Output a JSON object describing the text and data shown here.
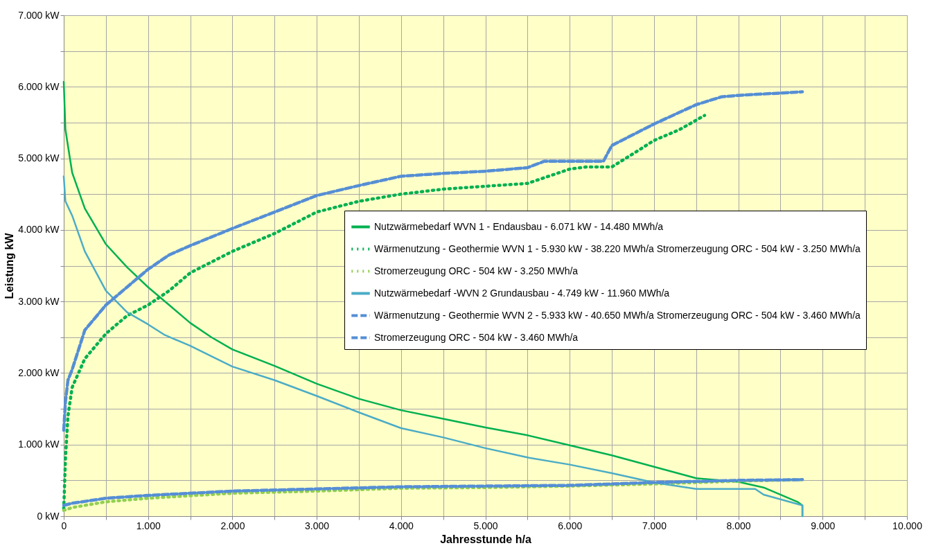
{
  "chart_data": {
    "type": "line",
    "xlabel": "Jahresstunde h/a",
    "ylabel": "Leistung kW",
    "xlim": [
      0,
      10000
    ],
    "ylim": [
      0,
      7000
    ],
    "xticks": [
      {
        "value": 0,
        "label": "0"
      },
      {
        "value": 500,
        "label": null
      },
      {
        "value": 1000,
        "label": "1.000"
      },
      {
        "value": 1500,
        "label": null
      },
      {
        "value": 2000,
        "label": "2.000"
      },
      {
        "value": 2500,
        "label": null
      },
      {
        "value": 3000,
        "label": "3.000"
      },
      {
        "value": 3500,
        "label": null
      },
      {
        "value": 4000,
        "label": "4.000"
      },
      {
        "value": 4500,
        "label": null
      },
      {
        "value": 5000,
        "label": "5.000"
      },
      {
        "value": 5500,
        "label": null
      },
      {
        "value": 6000,
        "label": "6.000"
      },
      {
        "value": 6500,
        "label": null
      },
      {
        "value": 7000,
        "label": "7.000"
      },
      {
        "value": 7500,
        "label": null
      },
      {
        "value": 8000,
        "label": "8.000"
      },
      {
        "value": 8500,
        "label": null
      },
      {
        "value": 9000,
        "label": "9.000"
      },
      {
        "value": 9500,
        "label": null
      },
      {
        "value": 10000,
        "label": "10.000"
      }
    ],
    "yticks": [
      {
        "value": 0,
        "label": "0 kW"
      },
      {
        "value": 500,
        "label": null
      },
      {
        "value": 1000,
        "label": "1.000 kW"
      },
      {
        "value": 1500,
        "label": null
      },
      {
        "value": 2000,
        "label": "2.000 kW"
      },
      {
        "value": 2500,
        "label": null
      },
      {
        "value": 3000,
        "label": "3.000 kW"
      },
      {
        "value": 3500,
        "label": null
      },
      {
        "value": 4000,
        "label": "4.000 kW"
      },
      {
        "value": 4500,
        "label": null
      },
      {
        "value": 5000,
        "label": "5.000 kW"
      },
      {
        "value": 5500,
        "label": null
      },
      {
        "value": 6000,
        "label": "6.000 kW"
      },
      {
        "value": 6500,
        "label": null
      },
      {
        "value": 7000,
        "label": "7.000 kW"
      }
    ],
    "grid": true,
    "legend": "right",
    "marker": "none",
    "series": [
      {
        "name": "Nutzwärmebedarf WVN 1 - Endausbau - 6.071 kW - 14.480 MWh/a",
        "color": "#00b050",
        "line_style": "solid",
        "x": [
          0,
          20,
          100,
          250,
          500,
          750,
          1000,
          1250,
          1500,
          1750,
          2000,
          2500,
          3000,
          3500,
          4000,
          4500,
          5000,
          5500,
          6000,
          6500,
          7000,
          7500,
          8000,
          8300,
          8700,
          8760,
          8760
        ],
        "values": [
          6070,
          5400,
          4800,
          4300,
          3800,
          3480,
          3200,
          2950,
          2700,
          2500,
          2330,
          2100,
          1850,
          1640,
          1480,
          1360,
          1240,
          1130,
          990,
          850,
          690,
          530,
          480,
          400,
          200,
          150,
          0
        ]
      },
      {
        "name": "Wärmenutzung - Geothermie WVN 1 - 5.930 kW - 38.220 MWh/a Stromerzeugung ORC - 504 kW - 3.250 MWh/a",
        "color": "#00b050",
        "line_style": "dotted",
        "x": [
          0,
          20,
          50,
          100,
          250,
          500,
          750,
          1000,
          1250,
          1500,
          2000,
          2500,
          3000,
          3500,
          4000,
          4500,
          5000,
          5500,
          6000,
          6200,
          6500,
          6800,
          7000,
          7300,
          7600
        ],
        "values": [
          100,
          800,
          1400,
          1800,
          2200,
          2550,
          2800,
          2950,
          3150,
          3400,
          3700,
          3950,
          4250,
          4400,
          4500,
          4570,
          4610,
          4650,
          4850,
          4880,
          4880,
          5100,
          5250,
          5400,
          5600
        ]
      },
      {
        "name": "Stromerzeugung ORC - 504 kW - 3.250 MWh/a",
        "color": "#92d050",
        "line_style": "dotted",
        "x": [
          0,
          100,
          500,
          1000,
          2000,
          3000,
          4000,
          5000,
          6000,
          7000,
          8000,
          8760
        ],
        "values": [
          80,
          120,
          200,
          250,
          320,
          350,
          390,
          400,
          420,
          450,
          490,
          510
        ]
      },
      {
        "name": "Nutzwärmebedarf -WVN 2 Grundausbau - 4.749 kW - 11.960 MWh/a",
        "color": "#4bacc6",
        "line_style": "solid",
        "x": [
          0,
          20,
          100,
          250,
          500,
          750,
          1000,
          1200,
          1500,
          2000,
          2500,
          3000,
          3500,
          4000,
          4500,
          5000,
          5500,
          6000,
          6500,
          7000,
          7500,
          8200,
          8300,
          8760,
          8760
        ],
        "values": [
          4750,
          4400,
          4200,
          3700,
          3150,
          2850,
          2680,
          2530,
          2380,
          2090,
          1900,
          1680,
          1450,
          1230,
          1100,
          950,
          820,
          720,
          600,
          470,
          380,
          380,
          300,
          150,
          0
        ]
      },
      {
        "name": "Wärmenutzung - Geothermie WVN 2 - 5.933 kW - 40.650 MWh/a Stromerzeugung ORC - 504 kW - 3.460 MWh/a",
        "color": "#558ed5",
        "line_style": "dashed",
        "x": [
          0,
          20,
          50,
          100,
          250,
          500,
          750,
          1000,
          1250,
          1500,
          2000,
          2500,
          3000,
          3500,
          4000,
          4500,
          5000,
          5500,
          5700,
          6400,
          6500,
          7000,
          7500,
          7800,
          8000,
          8760
        ],
        "values": [
          1200,
          1600,
          1900,
          2050,
          2600,
          2950,
          3200,
          3450,
          3650,
          3780,
          4020,
          4250,
          4480,
          4620,
          4750,
          4790,
          4820,
          4870,
          4960,
          4960,
          5180,
          5480,
          5750,
          5860,
          5880,
          5930
        ]
      },
      {
        "name": "Stromerzeugung ORC - 504 kW - 3.460 MWh/a",
        "color": "#558ed5",
        "line_style": "dashed",
        "x": [
          0,
          100,
          500,
          1000,
          2000,
          3000,
          4000,
          5000,
          6000,
          7000,
          8000,
          8760
        ],
        "values": [
          150,
          180,
          250,
          290,
          350,
          380,
          410,
          420,
          430,
          470,
          500,
          510
        ]
      }
    ]
  }
}
